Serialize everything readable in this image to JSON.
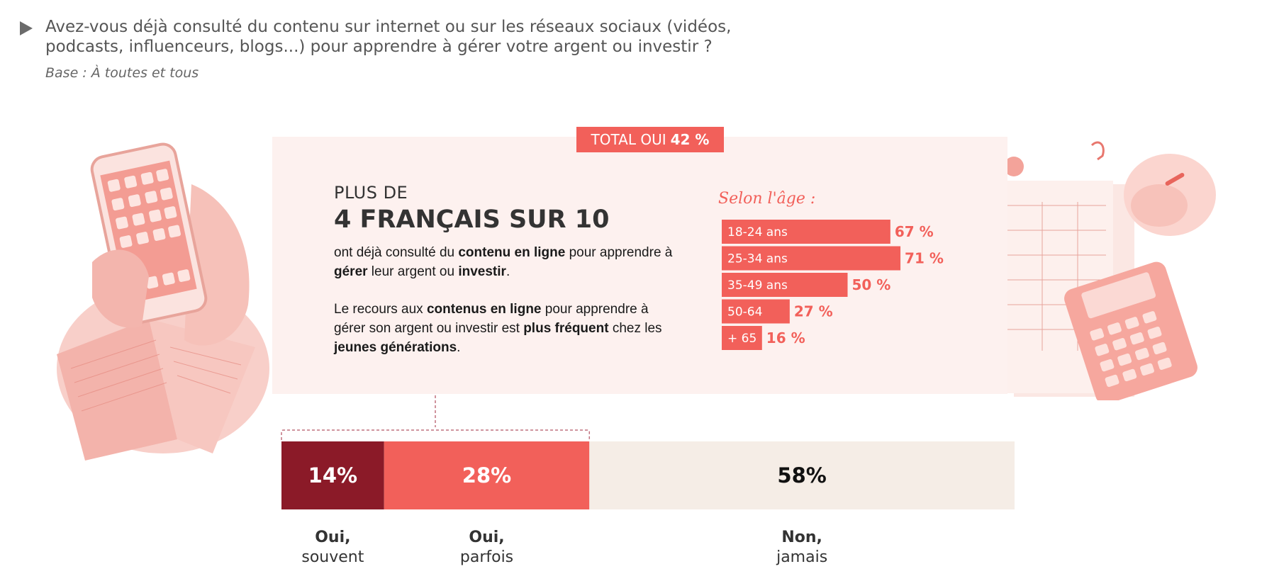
{
  "header": {
    "question": "Avez-vous déjà consulté du contenu sur internet ou sur les réseaux sociaux (vidéos, podcasts, influenceurs, blogs...) pour apprendre à gérer votre argent ou investir ?",
    "base": "Base : À toutes et tous"
  },
  "badge": {
    "label": "TOTAL OUI",
    "value": "42 %"
  },
  "highlight": {
    "pre": "PLUS DE",
    "headline": "4 FRANÇAIS SUR 10",
    "p1": [
      {
        "t": "ont déjà consulté du ",
        "b": false
      },
      {
        "t": "contenu en ligne",
        "b": true
      },
      {
        "t": " pour apprendre à ",
        "b": false
      },
      {
        "t": "gérer",
        "b": true
      },
      {
        "t": " leur argent ou ",
        "b": false
      },
      {
        "t": "investir",
        "b": true
      },
      {
        "t": ".",
        "b": false
      }
    ],
    "p2": [
      {
        "t": "Le recours aux ",
        "b": false
      },
      {
        "t": "contenus en ligne",
        "b": true
      },
      {
        "t": " pour apprendre à gérer son argent ou investir est ",
        "b": false
      },
      {
        "t": "plus fréquent",
        "b": true
      },
      {
        "t": " chez les ",
        "b": false
      },
      {
        "t": "jeunes générations",
        "b": true
      },
      {
        "t": ".",
        "b": false
      }
    ]
  },
  "chart_data": [
    {
      "type": "bar",
      "orientation": "horizontal",
      "title": "Selon l'âge :",
      "categories": [
        "18-24 ans",
        "25-34 ans",
        "35-49 ans",
        "50-64",
        "+ 65"
      ],
      "values": [
        67,
        71,
        50,
        27,
        16
      ],
      "value_labels": [
        "67 %",
        "71 %",
        "50 %",
        "27 %",
        "16 %"
      ],
      "color": "#f2605a"
    },
    {
      "type": "bar",
      "orientation": "stacked-horizontal",
      "categories": [
        "Oui, souvent",
        "Oui, parfois",
        "Non, jamais"
      ],
      "series": [
        {
          "label_line1": "Oui,",
          "label_line2": "souvent",
          "value": 14,
          "value_label": "14%",
          "color": "#8b1a28",
          "text_color": "#ffffff"
        },
        {
          "label_line1": "Oui,",
          "label_line2": "parfois",
          "value": 28,
          "value_label": "28%",
          "color": "#f2605a",
          "text_color": "#ffffff"
        },
        {
          "label_line1": "Non,",
          "label_line2": "jamais",
          "value": 58,
          "value_label": "58%",
          "color": "#f5ede6",
          "text_color": "#111111"
        }
      ]
    }
  ]
}
